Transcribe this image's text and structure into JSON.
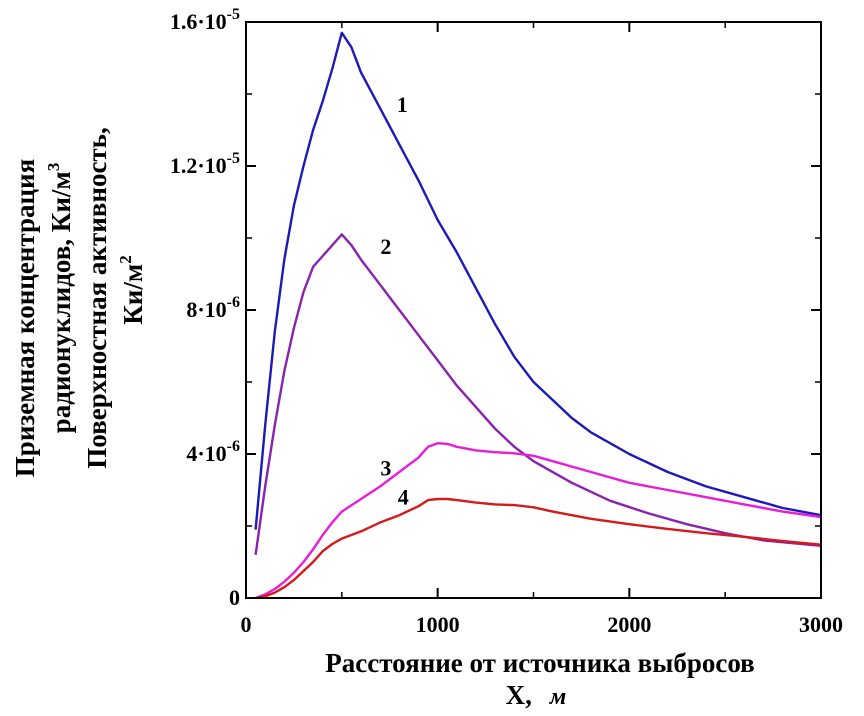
{
  "chart_data": {
    "type": "line",
    "xlim": [
      0,
      3000
    ],
    "ylim": [
      0,
      1.6e-05
    ],
    "x_ticks": [
      {
        "value": 0,
        "label": "0"
      },
      {
        "value": 1000,
        "label": "1000"
      },
      {
        "value": 2000,
        "label": "2000"
      },
      {
        "value": 3000,
        "label": "3000"
      }
    ],
    "y_ticks": [
      {
        "value": 0,
        "label": "0",
        "exp": ""
      },
      {
        "value": 4e-06,
        "label": "4·10",
        "exp": "-6"
      },
      {
        "value": 8e-06,
        "label": "8·10",
        "exp": "-6"
      },
      {
        "value": 1.2e-05,
        "label": "1.2·10",
        "exp": "-5"
      },
      {
        "value": 1.6e-05,
        "label": "1.6·10",
        "exp": "-5"
      }
    ],
    "xlabel": {
      "line1": "Расстояние от источника выбросов",
      "line2_a": "X,",
      "line2_b": "м"
    },
    "ylabel": {
      "line1": "Приземная концентрация",
      "line2_a": "радионуклидов, Ки/м",
      "line2_sup": "3",
      "line3": "Поверхностная активность,",
      "line4_a": "Ки/м",
      "line4_sup": "2"
    },
    "grid": false,
    "series": [
      {
        "label": "1",
        "color": "#1a1ab8",
        "label_at": [
          815,
          1.35e-05
        ],
        "points": [
          [
            50,
            1.9e-06
          ],
          [
            100,
            4.8e-06
          ],
          [
            150,
            7.4e-06
          ],
          [
            200,
            9.4e-06
          ],
          [
            250,
            1.09e-05
          ],
          [
            300,
            1.2e-05
          ],
          [
            350,
            1.3e-05
          ],
          [
            400,
            1.38e-05
          ],
          [
            450,
            1.47e-05
          ],
          [
            500,
            1.57e-05
          ],
          [
            550,
            1.53e-05
          ],
          [
            600,
            1.46e-05
          ],
          [
            700,
            1.36e-05
          ],
          [
            800,
            1.26e-05
          ],
          [
            900,
            1.16e-05
          ],
          [
            1000,
            1.05e-05
          ],
          [
            1100,
            9.6e-06
          ],
          [
            1200,
            8.6e-06
          ],
          [
            1300,
            7.6e-06
          ],
          [
            1400,
            6.7e-06
          ],
          [
            1500,
            6e-06
          ],
          [
            1600,
            5.5e-06
          ],
          [
            1700,
            5e-06
          ],
          [
            1800,
            4.6e-06
          ],
          [
            2000,
            4e-06
          ],
          [
            2200,
            3.5e-06
          ],
          [
            2400,
            3.1e-06
          ],
          [
            2600,
            2.8e-06
          ],
          [
            2800,
            2.5e-06
          ],
          [
            3000,
            2.3e-06
          ]
        ]
      },
      {
        "label": "2",
        "color": "#8a22b0",
        "label_at": [
          730,
          9.55e-06
        ],
        "points": [
          [
            50,
            1.2e-06
          ],
          [
            100,
            3.1e-06
          ],
          [
            150,
            4.8e-06
          ],
          [
            200,
            6.3e-06
          ],
          [
            250,
            7.5e-06
          ],
          [
            300,
            8.5e-06
          ],
          [
            350,
            9.2e-06
          ],
          [
            400,
            9.5e-06
          ],
          [
            450,
            9.8e-06
          ],
          [
            500,
            1.01e-05
          ],
          [
            550,
            9.8e-06
          ],
          [
            600,
            9.4e-06
          ],
          [
            700,
            8.7e-06
          ],
          [
            800,
            8e-06
          ],
          [
            900,
            7.3e-06
          ],
          [
            1000,
            6.6e-06
          ],
          [
            1100,
            5.9e-06
          ],
          [
            1200,
            5.3e-06
          ],
          [
            1300,
            4.7e-06
          ],
          [
            1400,
            4.2e-06
          ],
          [
            1500,
            3.8e-06
          ],
          [
            1700,
            3.2e-06
          ],
          [
            1900,
            2.7e-06
          ],
          [
            2100,
            2.35e-06
          ],
          [
            2300,
            2.05e-06
          ],
          [
            2500,
            1.8e-06
          ],
          [
            2700,
            1.6e-06
          ],
          [
            3000,
            1.45e-06
          ]
        ]
      },
      {
        "label": "3",
        "color": "#e61ed8",
        "label_at": [
          730,
          3.4e-06
        ],
        "points": [
          [
            50,
            0.0
          ],
          [
            100,
            1e-07
          ],
          [
            150,
            2.5e-07
          ],
          [
            200,
            4.5e-07
          ],
          [
            250,
            7e-07
          ],
          [
            300,
            1e-06
          ],
          [
            350,
            1.35e-06
          ],
          [
            400,
            1.75e-06
          ],
          [
            450,
            2.1e-06
          ],
          [
            500,
            2.4e-06
          ],
          [
            600,
            2.75e-06
          ],
          [
            700,
            3.1e-06
          ],
          [
            800,
            3.5e-06
          ],
          [
            900,
            3.9e-06
          ],
          [
            950,
            4.2e-06
          ],
          [
            1000,
            4.3e-06
          ],
          [
            1050,
            4.28e-06
          ],
          [
            1100,
            4.2e-06
          ],
          [
            1200,
            4.1e-06
          ],
          [
            1300,
            4.05e-06
          ],
          [
            1400,
            4.02e-06
          ],
          [
            1500,
            3.95e-06
          ],
          [
            1600,
            3.8e-06
          ],
          [
            1800,
            3.5e-06
          ],
          [
            2000,
            3.2e-06
          ],
          [
            2200,
            3e-06
          ],
          [
            2400,
            2.8e-06
          ],
          [
            2600,
            2.6e-06
          ],
          [
            2800,
            2.4e-06
          ],
          [
            3000,
            2.25e-06
          ]
        ]
      },
      {
        "label": "4",
        "color": "#d41a1a",
        "label_at": [
          820,
          2.6e-06
        ],
        "points": [
          [
            50,
            0.0
          ],
          [
            100,
            5e-08
          ],
          [
            150,
            1.5e-07
          ],
          [
            200,
            3e-07
          ],
          [
            250,
            5e-07
          ],
          [
            300,
            7.5e-07
          ],
          [
            350,
            1e-06
          ],
          [
            400,
            1.3e-06
          ],
          [
            450,
            1.5e-06
          ],
          [
            500,
            1.65e-06
          ],
          [
            600,
            1.85e-06
          ],
          [
            700,
            2.1e-06
          ],
          [
            800,
            2.3e-06
          ],
          [
            900,
            2.55e-06
          ],
          [
            950,
            2.72e-06
          ],
          [
            1000,
            2.75e-06
          ],
          [
            1050,
            2.75e-06
          ],
          [
            1100,
            2.72e-06
          ],
          [
            1200,
            2.65e-06
          ],
          [
            1300,
            2.6e-06
          ],
          [
            1400,
            2.58e-06
          ],
          [
            1500,
            2.52e-06
          ],
          [
            1600,
            2.4e-06
          ],
          [
            1800,
            2.2e-06
          ],
          [
            2000,
            2.05e-06
          ],
          [
            2200,
            1.92e-06
          ],
          [
            2400,
            1.8e-06
          ],
          [
            2600,
            1.7e-06
          ],
          [
            2800,
            1.58e-06
          ],
          [
            3000,
            1.48e-06
          ]
        ]
      }
    ]
  }
}
